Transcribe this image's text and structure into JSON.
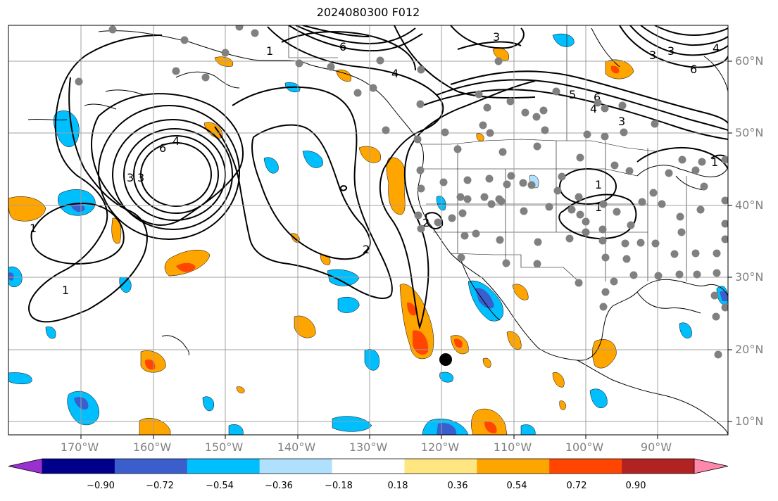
{
  "title": "2024080300 F012",
  "lat_labels": [
    "60°N",
    "50°N",
    "40°N",
    "30°N",
    "20°N",
    "10°N"
  ],
  "lon_labels": [
    "170°W",
    "160°W",
    "150°W",
    "140°W",
    "130°W",
    "120°W",
    "110°W",
    "100°W",
    "90°W"
  ],
  "contour_labels": [
    "1",
    "2",
    "3",
    "4",
    "5",
    "6"
  ],
  "colorbar": {
    "ticks": [
      "−0.90",
      "−0.72",
      "−0.54",
      "−0.36",
      "−0.18",
      "0.18",
      "0.36",
      "0.54",
      "0.72",
      "0.90"
    ],
    "colors": [
      "#9b30d0",
      "#00008b",
      "#3a5fcd",
      "#00bfff",
      "#afe1ff",
      "#ffffff",
      "#ffe680",
      "#ffa500",
      "#ff4500",
      "#b22222",
      "#ff88aa"
    ]
  },
  "colors": {
    "grid": "#a0a0a0",
    "station": "#808080",
    "label": "#808080"
  },
  "markers": {
    "stations": "gray circles",
    "target": "black circle"
  }
}
